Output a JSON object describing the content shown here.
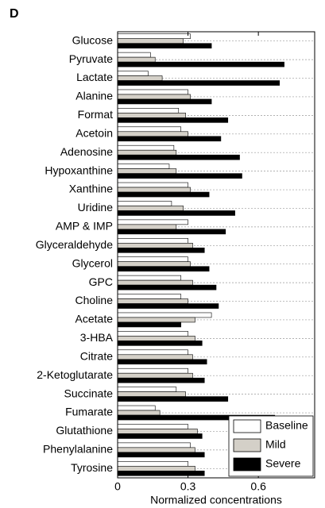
{
  "chart_data": {
    "type": "barh",
    "panel_label": "D",
    "xlabel": "Normalized concentrations",
    "categories": [
      "Glucose",
      "Pyruvate",
      "Lactate",
      "Alanine",
      "Format",
      "Acetoin",
      "Adenosine",
      "Hypoxanthine",
      "Xanthine",
      "Uridine",
      "AMP & IMP",
      "Glyceraldehyde",
      "Glycerol",
      "GPC",
      "Choline",
      "Acetate",
      "3-HBA",
      "Citrate",
      "2-Ketoglutarate",
      "Succinate",
      "Fumarate",
      "Glutathione",
      "Phenylalanine",
      "Tyrosine"
    ],
    "series": [
      {
        "name": "Baseline",
        "color": "#ffffff",
        "values": [
          0.31,
          0.14,
          0.13,
          0.3,
          0.26,
          0.27,
          0.24,
          0.22,
          0.3,
          0.23,
          0.3,
          0.3,
          0.3,
          0.27,
          0.27,
          0.4,
          0.3,
          0.3,
          0.3,
          0.25,
          0.16,
          0.3,
          0.31,
          0.3
        ]
      },
      {
        "name": "Mild",
        "color": "#d4d0c8",
        "values": [
          0.28,
          0.16,
          0.19,
          0.31,
          0.29,
          0.3,
          0.25,
          0.25,
          0.31,
          0.28,
          0.25,
          0.32,
          0.31,
          0.32,
          0.3,
          0.33,
          0.33,
          0.32,
          0.32,
          0.29,
          0.18,
          0.34,
          0.33,
          0.33
        ]
      },
      {
        "name": "Severe",
        "color": "#000000",
        "values": [
          0.4,
          0.71,
          0.69,
          0.4,
          0.47,
          0.44,
          0.52,
          0.53,
          0.39,
          0.5,
          0.46,
          0.37,
          0.39,
          0.42,
          0.43,
          0.27,
          0.36,
          0.38,
          0.37,
          0.47,
          0.67,
          0.36,
          0.37,
          0.37
        ]
      }
    ],
    "xlim": [
      0,
      0.84
    ],
    "xticks": [
      0,
      0.3,
      0.6
    ],
    "grid": true,
    "legend": "lower right"
  }
}
